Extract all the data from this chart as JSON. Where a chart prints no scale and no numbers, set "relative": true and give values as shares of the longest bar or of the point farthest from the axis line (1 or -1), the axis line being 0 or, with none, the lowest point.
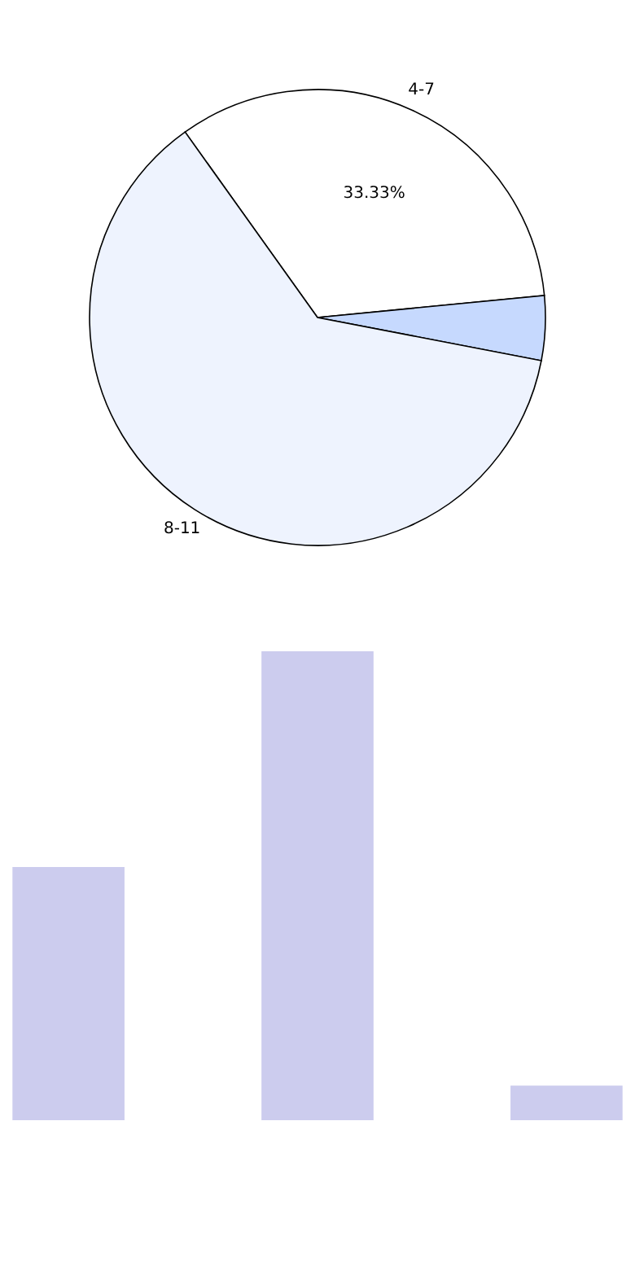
{
  "chart_data": [
    {
      "type": "pie",
      "categories": [
        "4-7",
        null,
        "8-11"
      ],
      "values": [
        33.33,
        4.57,
        62.1
      ],
      "colors": [
        "#ffffff",
        "#c6d9fe",
        "#eef3fe"
      ],
      "value_labels": [
        "33.33%",
        null,
        null
      ],
      "legend": false
    },
    {
      "type": "bar",
      "categories": [
        null,
        null,
        null
      ],
      "values": [
        0.54,
        1,
        0.074
      ],
      "color": "#ccccee",
      "relative": true
    }
  ]
}
